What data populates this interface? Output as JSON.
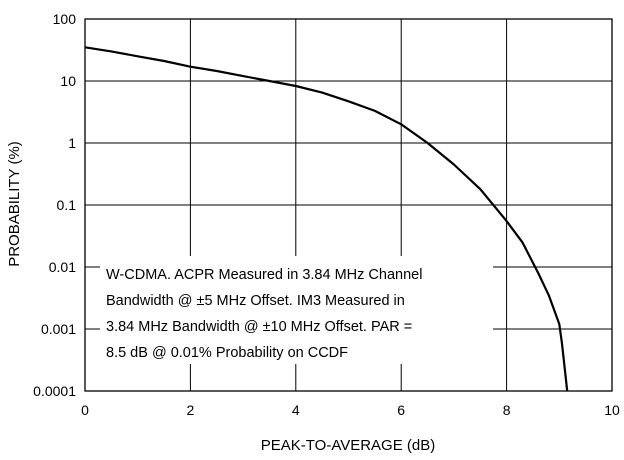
{
  "chart_data": {
    "type": "line",
    "title": "",
    "xlabel": "PEAK-TO-AVERAGE (dB)",
    "ylabel": "PROBABILITY (%)",
    "xlim": [
      0,
      10
    ],
    "ylim": [
      0.0001,
      100
    ],
    "yscale": "log",
    "grid": true,
    "x_ticks": [
      "0",
      "2",
      "4",
      "6",
      "8",
      "10"
    ],
    "y_ticks": [
      "100",
      "10",
      "1",
      "0.1",
      "0.01",
      "0.001",
      "0.0001"
    ],
    "annotation": [
      "W-CDMA. ACPR Measured in 3.84 MHz Channel",
      "Bandwidth @ ±5 MHz Offset. IM3 Measured in",
      "3.84 MHz Bandwidth @ ±10 MHz Offset. PAR =",
      "8.5 dB @ 0.01% Probability on CCDF"
    ],
    "series": [
      {
        "x": [
          0,
          0.5,
          1,
          1.5,
          2,
          2.5,
          3,
          3.5,
          4,
          4.5,
          5,
          5.5,
          6,
          6.5,
          7,
          7.5,
          8,
          8.3,
          8.6,
          8.8,
          9.0,
          9.05,
          9.15
        ],
        "y": [
          35,
          30,
          25,
          21,
          17,
          14.5,
          12,
          10,
          8.3,
          6.5,
          4.7,
          3.3,
          2.0,
          1.0,
          0.45,
          0.18,
          0.055,
          0.025,
          0.008,
          0.0035,
          0.0012,
          0.0006,
          0.0001
        ]
      }
    ]
  }
}
